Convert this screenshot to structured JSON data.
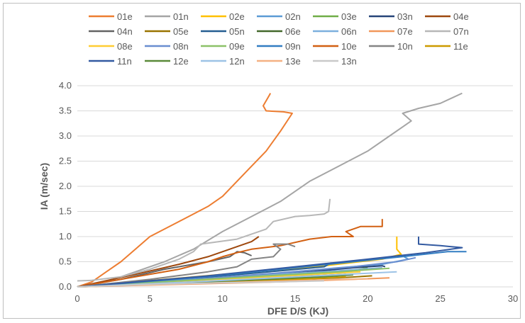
{
  "chart_data": {
    "type": "line",
    "xlabel": "DFE D/S (KJ)",
    "ylabel": "IA (m/sec)",
    "xlim": [
      0,
      30
    ],
    "ylim": [
      0,
      4.0
    ],
    "x_ticks": [
      "0",
      "5",
      "10",
      "15",
      "20",
      "25",
      "30"
    ],
    "y_ticks": [
      "0.0",
      "0.5",
      "1.0",
      "1.5",
      "2.0",
      "2.5",
      "3.0",
      "3.5",
      "4.0"
    ],
    "grid": "horizontal",
    "legend_position": "top",
    "series": [
      {
        "name": "01e",
        "color": "#ED7D31",
        "points": [
          [
            0,
            0
          ],
          [
            1,
            0.1
          ],
          [
            2,
            0.3
          ],
          [
            3,
            0.5
          ],
          [
            4,
            0.75
          ],
          [
            5,
            1.0
          ],
          [
            6,
            1.15
          ],
          [
            7,
            1.3
          ],
          [
            8,
            1.45
          ],
          [
            9,
            1.6
          ],
          [
            10,
            1.8
          ],
          [
            11,
            2.1
          ],
          [
            12,
            2.4
          ],
          [
            13,
            2.7
          ],
          [
            14,
            3.1
          ],
          [
            14.8,
            3.45
          ],
          [
            14.2,
            3.48
          ],
          [
            13,
            3.5
          ],
          [
            12.8,
            3.6
          ],
          [
            13.2,
            3.8
          ],
          [
            13.3,
            3.85
          ]
        ]
      },
      {
        "name": "01n",
        "color": "#A5A5A5",
        "points": [
          [
            0,
            0
          ],
          [
            2,
            0.1
          ],
          [
            4,
            0.3
          ],
          [
            6,
            0.5
          ],
          [
            8,
            0.75
          ],
          [
            10,
            1.1
          ],
          [
            12,
            1.4
          ],
          [
            14,
            1.7
          ],
          [
            16,
            2.1
          ],
          [
            18,
            2.4
          ],
          [
            20,
            2.7
          ],
          [
            21.5,
            3.0
          ],
          [
            22.5,
            3.2
          ],
          [
            23,
            3.3
          ],
          [
            22.4,
            3.45
          ],
          [
            23.5,
            3.55
          ],
          [
            25,
            3.65
          ],
          [
            26.5,
            3.85
          ]
        ]
      },
      {
        "name": "02e",
        "color": "#FFC000",
        "points": [
          [
            0,
            0
          ],
          [
            6,
            0.15
          ],
          [
            12,
            0.3
          ],
          [
            17,
            0.42
          ],
          [
            21,
            0.55
          ],
          [
            22.3,
            0.65
          ],
          [
            22,
            0.75
          ],
          [
            22,
            1.0
          ]
        ]
      },
      {
        "name": "02n",
        "color": "#5B9BD5",
        "points": [
          [
            0,
            0
          ],
          [
            7,
            0.12
          ],
          [
            13,
            0.25
          ],
          [
            18,
            0.38
          ],
          [
            21,
            0.45
          ],
          [
            22.8,
            0.55
          ],
          [
            22.5,
            0.6
          ]
        ]
      },
      {
        "name": "03e",
        "color": "#70AD47",
        "points": [
          [
            0,
            0
          ],
          [
            8,
            0.1
          ],
          [
            14,
            0.2
          ],
          [
            18.5,
            0.3
          ],
          [
            20,
            0.38
          ]
        ]
      },
      {
        "name": "03n",
        "color": "#264478",
        "points": [
          [
            0,
            0
          ],
          [
            7,
            0.12
          ],
          [
            12,
            0.2
          ],
          [
            16,
            0.3
          ],
          [
            19,
            0.38
          ],
          [
            21,
            0.42
          ],
          [
            21.2,
            0.4
          ]
        ]
      },
      {
        "name": "04e",
        "color": "#9E480E",
        "points": [
          [
            0,
            0
          ],
          [
            4,
            0.25
          ],
          [
            7,
            0.45
          ],
          [
            9,
            0.6
          ],
          [
            10,
            0.7
          ],
          [
            11,
            0.8
          ],
          [
            12,
            0.9
          ],
          [
            12.5,
            1.0
          ]
        ]
      },
      {
        "name": "04n",
        "color": "#636363",
        "points": [
          [
            0,
            0
          ],
          [
            3,
            0.15
          ],
          [
            6,
            0.35
          ],
          [
            9,
            0.5
          ],
          [
            10.5,
            0.6
          ],
          [
            11,
            0.7
          ],
          [
            11.5,
            0.68
          ],
          [
            12,
            0.62
          ]
        ]
      },
      {
        "name": "05e",
        "color": "#997300",
        "points": [
          [
            0,
            0
          ],
          [
            7,
            0.07
          ],
          [
            13,
            0.13
          ],
          [
            18,
            0.18
          ],
          [
            20.3,
            0.22
          ]
        ]
      },
      {
        "name": "05n",
        "color": "#255E91",
        "points": [
          [
            0,
            0
          ],
          [
            5,
            0.1
          ],
          [
            10,
            0.22
          ],
          [
            14,
            0.32
          ],
          [
            17,
            0.4
          ],
          [
            17.5,
            0.48
          ]
        ]
      },
      {
        "name": "06e",
        "color": "#43682B",
        "points": [
          [
            0,
            0
          ],
          [
            6,
            0.08
          ],
          [
            11,
            0.14
          ],
          [
            15,
            0.2
          ],
          [
            18.5,
            0.25
          ]
        ]
      },
      {
        "name": "06n",
        "color": "#7CAFDD",
        "points": [
          [
            0,
            0
          ],
          [
            6,
            0.12
          ],
          [
            12,
            0.22
          ],
          [
            18,
            0.32
          ],
          [
            21,
            0.38
          ]
        ]
      },
      {
        "name": "07e",
        "color": "#F1975A",
        "points": [
          [
            0,
            0
          ],
          [
            7,
            0.05
          ],
          [
            14,
            0.1
          ],
          [
            19,
            0.15
          ],
          [
            21.5,
            0.18
          ]
        ]
      },
      {
        "name": "07n",
        "color": "#B7B7B7",
        "points": [
          [
            0,
            0.12
          ],
          [
            1,
            0.13
          ],
          [
            3,
            0.2
          ],
          [
            5,
            0.35
          ],
          [
            7,
            0.55
          ],
          [
            8,
            0.7
          ],
          [
            8.5,
            0.85
          ],
          [
            11,
            0.95
          ],
          [
            13,
            1.15
          ],
          [
            13.5,
            1.3
          ],
          [
            15,
            1.4
          ],
          [
            16,
            1.42
          ],
          [
            17,
            1.45
          ],
          [
            17.3,
            1.5
          ],
          [
            17.4,
            1.75
          ]
        ]
      },
      {
        "name": "08e",
        "color": "#FFCD33",
        "points": [
          [
            0,
            0
          ],
          [
            6,
            0.1
          ],
          [
            12,
            0.18
          ],
          [
            17,
            0.26
          ],
          [
            19.5,
            0.3
          ]
        ]
      },
      {
        "name": "08n",
        "color": "#698ED0",
        "points": [
          [
            0,
            0
          ],
          [
            8,
            0.15
          ],
          [
            14,
            0.28
          ],
          [
            19,
            0.4
          ],
          [
            22,
            0.5
          ],
          [
            23.3,
            0.58
          ]
        ]
      },
      {
        "name": "09e",
        "color": "#8CC168",
        "points": [
          [
            0,
            0
          ],
          [
            7,
            0.12
          ],
          [
            13,
            0.22
          ],
          [
            18,
            0.3
          ],
          [
            21.5,
            0.37
          ]
        ]
      },
      {
        "name": "09n",
        "color": "#327DC2",
        "points": [
          [
            0,
            0
          ],
          [
            8,
            0.18
          ],
          [
            14,
            0.35
          ],
          [
            19,
            0.5
          ],
          [
            23,
            0.62
          ],
          [
            25.5,
            0.7
          ],
          [
            26.8,
            0.7
          ]
        ]
      },
      {
        "name": "10e",
        "color": "#D26012",
        "points": [
          [
            0,
            0
          ],
          [
            4,
            0.2
          ],
          [
            7,
            0.35
          ],
          [
            9,
            0.5
          ],
          [
            10,
            0.6
          ],
          [
            11,
            0.68
          ],
          [
            12,
            0.75
          ],
          [
            14,
            0.82
          ],
          [
            16,
            0.95
          ],
          [
            17.5,
            1.0
          ],
          [
            19,
            1.0
          ],
          [
            18.5,
            1.1
          ],
          [
            19.5,
            1.2
          ],
          [
            21,
            1.2
          ],
          [
            21,
            1.35
          ]
        ]
      },
      {
        "name": "10n",
        "color": "#848484",
        "points": [
          [
            0,
            0
          ],
          [
            5,
            0.15
          ],
          [
            9,
            0.3
          ],
          [
            11,
            0.4
          ],
          [
            12,
            0.55
          ],
          [
            13.5,
            0.6
          ],
          [
            14,
            0.75
          ],
          [
            13.5,
            0.85
          ],
          [
            14.5,
            0.85
          ],
          [
            15,
            0.8
          ]
        ]
      },
      {
        "name": "11e",
        "color": "#CC9A00",
        "points": [
          [
            0,
            0
          ],
          [
            6,
            0.06
          ],
          [
            12,
            0.11
          ],
          [
            16,
            0.16
          ],
          [
            18.5,
            0.2
          ]
        ]
      },
      {
        "name": "11n",
        "color": "#335AA1",
        "points": [
          [
            0,
            0
          ],
          [
            9,
            0.22
          ],
          [
            15,
            0.4
          ],
          [
            20,
            0.55
          ],
          [
            24,
            0.68
          ],
          [
            26.5,
            0.78
          ],
          [
            25,
            0.82
          ],
          [
            23.5,
            0.85
          ],
          [
            23.5,
            1.0
          ]
        ]
      },
      {
        "name": "12e",
        "color": "#5A8A39",
        "points": [
          [
            0,
            0
          ],
          [
            7,
            0.08
          ],
          [
            13,
            0.15
          ],
          [
            17,
            0.2
          ],
          [
            19,
            0.24
          ]
        ]
      },
      {
        "name": "12n",
        "color": "#9DC3E6",
        "points": [
          [
            0,
            0
          ],
          [
            8,
            0.1
          ],
          [
            15,
            0.2
          ],
          [
            20,
            0.27
          ],
          [
            22,
            0.3
          ]
        ]
      },
      {
        "name": "13e",
        "color": "#F4B183",
        "points": [
          [
            0,
            0
          ],
          [
            6,
            0.05
          ],
          [
            12,
            0.1
          ],
          [
            17,
            0.14
          ],
          [
            20,
            0.16
          ]
        ]
      },
      {
        "name": "13n",
        "color": "#C9C9C9",
        "points": [
          [
            0,
            0
          ],
          [
            5,
            0.05
          ],
          [
            10,
            0.08
          ],
          [
            14,
            0.1
          ],
          [
            17,
            0.12
          ]
        ]
      }
    ]
  }
}
